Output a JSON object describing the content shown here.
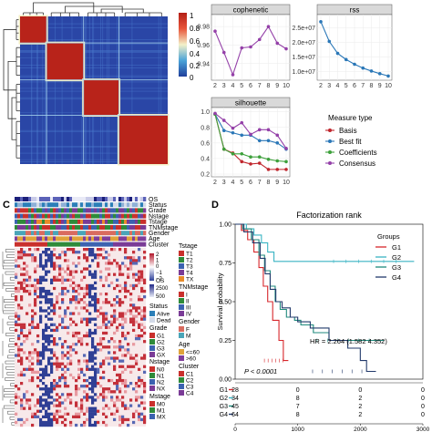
{
  "panels": {
    "c": "C",
    "d": "D"
  },
  "consensus_colorbar": {
    "ticks": [
      "1",
      "0.8",
      "0.6",
      "0.4",
      "0.2",
      "0"
    ],
    "gradient": [
      "#1f3f9b",
      "#4aa3d8",
      "#f3f1c9",
      "#e8553a",
      "#b41f16"
    ]
  },
  "heatmap_annotations": {
    "tracks": [
      "OS",
      "Status",
      "Grade",
      "Nstage",
      "Tstage",
      "TNMstage",
      "Gender",
      "Age",
      "Cluster"
    ],
    "legend": {
      "expr_ticks": [
        "2",
        "1",
        "0",
        "−1",
        "−2"
      ],
      "os_ticks": [
        "2500",
        "500"
      ],
      "os_label": "OS",
      "status_title": "Status",
      "status_items": [
        "Alive",
        "Dead"
      ],
      "grade_title": "Grade",
      "grade_items": [
        "G1",
        "G2",
        "G3",
        "GX"
      ],
      "nstage_title": "Nstage",
      "nstage_items": [
        "N0",
        "N1",
        "N2",
        "NX"
      ],
      "mstage_title": "Mstage",
      "mstage_items": [
        "M0",
        "M1",
        "MX"
      ],
      "tstage_title": "Tstage",
      "tstage_items": [
        "T1",
        "T2",
        "T3",
        "T4",
        "TX"
      ],
      "tnm_title": "TNMstage",
      "tnm_items": [
        "I",
        "II",
        "III",
        "IV"
      ],
      "gender_title": "Gender",
      "gender_items": [
        "F",
        "M"
      ],
      "age_title": "Age",
      "age_items": [
        "<=60",
        ">60"
      ],
      "cluster_title": "Cluster",
      "cluster_items": [
        "C1",
        "C2",
        "C3",
        "C4"
      ]
    }
  },
  "colors": {
    "basis": "#c0262d",
    "bestfit": "#2a77b7",
    "coefficients": "#3da03b",
    "consensus": "#9440a8",
    "g1": "#d7262b",
    "g2": "#3ab4c3",
    "g3": "#1f8a7c",
    "g4": "#223a6b"
  },
  "chart_data": [
    {
      "type": "line",
      "title": "cophenetic",
      "x": [
        2,
        3,
        4,
        5,
        6,
        7,
        8,
        9,
        10
      ],
      "series": [
        {
          "values": [
            0.975,
            0.952,
            0.928,
            0.957,
            0.958,
            0.966,
            0.98,
            0.962,
            0.956
          ]
        }
      ],
      "xlim": [
        2,
        10
      ],
      "ylim": [
        0.925,
        0.99
      ],
      "yticks": [
        "0.98",
        "0.96",
        "0.94"
      ],
      "xticks": [
        "2",
        "3",
        "4",
        "5",
        "6",
        "7",
        "8",
        "9",
        "10"
      ],
      "grid": true
    },
    {
      "type": "line",
      "title": "rss",
      "x": [
        2,
        3,
        4,
        5,
        6,
        7,
        8,
        9,
        10
      ],
      "series": [
        {
          "values": [
            27000000,
            20300000,
            16200000,
            14100000,
            12500000,
            11200000,
            10200000,
            9300000,
            8500000
          ]
        }
      ],
      "xlim": [
        2,
        10
      ],
      "ylim": [
        8000000,
        28500000
      ],
      "yticks": [
        "2.5e+07",
        "2.0e+07",
        "1.5e+07",
        "1.0e+07"
      ],
      "xticks": [
        "2",
        "3",
        "4",
        "5",
        "6",
        "7",
        "8",
        "9",
        "10"
      ],
      "grid": true
    },
    {
      "type": "line",
      "title": "silhouette",
      "x": [
        2,
        3,
        4,
        5,
        6,
        7,
        8,
        9,
        10
      ],
      "series": [
        {
          "name": "Basis",
          "values": [
            0.97,
            0.52,
            0.47,
            0.36,
            0.33,
            0.34,
            0.26,
            0.26,
            0.26
          ]
        },
        {
          "name": "Best fit",
          "values": [
            0.97,
            0.76,
            0.73,
            0.7,
            0.7,
            0.63,
            0.63,
            0.6,
            0.52
          ]
        },
        {
          "name": "Coefficients",
          "values": [
            0.97,
            0.52,
            0.46,
            0.46,
            0.42,
            0.42,
            0.39,
            0.37,
            0.36
          ]
        },
        {
          "name": "Consensus",
          "values": [
            0.98,
            0.89,
            0.79,
            0.86,
            0.71,
            0.77,
            0.77,
            0.7,
            0.53
          ]
        }
      ],
      "xlim": [
        2,
        10
      ],
      "ylim": [
        0.2,
        1.02
      ],
      "yticks": [
        "1.0",
        "0.8",
        "0.6",
        "0.4",
        "0.2"
      ],
      "xticks": [
        "2",
        "3",
        "4",
        "5",
        "6",
        "7",
        "8",
        "9",
        "10"
      ],
      "legend_title": "Measure type",
      "legend_position": "right",
      "grid": true
    },
    {
      "type": "line",
      "title": "Factorization rank",
      "xlabel": "",
      "ylabel": "Survival probability",
      "xlim": [
        0,
        3000
      ],
      "ylim": [
        0,
        1
      ],
      "xticks": [
        "0",
        "1000",
        "2000",
        "3000"
      ],
      "yticks": [
        "1.00",
        "0.75",
        "0.50",
        "0.25",
        "0.00"
      ],
      "legend_title": "Groups",
      "legend_position": "top-right",
      "annotations": [
        "HR = 2.264 (1.582 4.352)",
        "P < 0.0001"
      ],
      "series": [
        {
          "name": "G1",
          "steps": [
            [
              0,
              1
            ],
            [
              100,
              0.96
            ],
            [
              200,
              0.9
            ],
            [
              300,
              0.82
            ],
            [
              380,
              0.72
            ],
            [
              450,
              0.6
            ],
            [
              520,
              0.5
            ],
            [
              600,
              0.38
            ],
            [
              700,
              0.25
            ],
            [
              770,
              0.12
            ],
            [
              850,
              0.12
            ]
          ]
        },
        {
          "name": "G2",
          "steps": [
            [
              0,
              1
            ],
            [
              180,
              0.97
            ],
            [
              300,
              0.93
            ],
            [
              420,
              0.88
            ],
            [
              520,
              0.82
            ],
            [
              620,
              0.76
            ],
            [
              2860,
              0.76
            ]
          ]
        },
        {
          "name": "G3",
          "steps": [
            [
              0,
              1
            ],
            [
              120,
              0.97
            ],
            [
              260,
              0.9
            ],
            [
              380,
              0.8
            ],
            [
              470,
              0.7
            ],
            [
              560,
              0.6
            ],
            [
              640,
              0.5
            ],
            [
              720,
              0.45
            ],
            [
              820,
              0.4
            ],
            [
              950,
              0.38
            ],
            [
              1050,
              0.35
            ],
            [
              1250,
              0.3
            ],
            [
              1500,
              0.25
            ],
            [
              2380,
              0.25
            ]
          ]
        },
        {
          "name": "G4",
          "steps": [
            [
              0,
              1
            ],
            [
              140,
              0.95
            ],
            [
              280,
              0.88
            ],
            [
              400,
              0.78
            ],
            [
              480,
              0.68
            ],
            [
              560,
              0.58
            ],
            [
              650,
              0.5
            ],
            [
              750,
              0.46
            ],
            [
              880,
              0.4
            ],
            [
              1000,
              0.37
            ],
            [
              1200,
              0.33
            ],
            [
              1500,
              0.25
            ],
            [
              1800,
              0.2
            ],
            [
              2000,
              0.12
            ],
            [
              2100,
              0.05
            ],
            [
              2250,
              0.05
            ]
          ]
        }
      ],
      "risk_table": {
        "groups": [
          "G1",
          "G2",
          "G3",
          "G4"
        ],
        "times": [
          "0",
          "1000",
          "2000",
          "3000"
        ],
        "counts": [
          [
            28,
            0,
            0,
            0
          ],
          [
            34,
            8,
            2,
            0
          ],
          [
            45,
            7,
            2,
            0
          ],
          [
            64,
            8,
            2,
            0
          ]
        ]
      }
    }
  ]
}
